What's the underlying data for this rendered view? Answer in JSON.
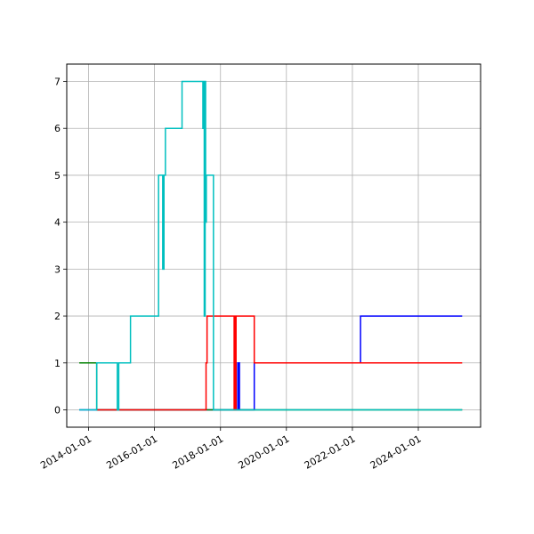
{
  "chart_data": {
    "type": "line",
    "title": "",
    "xlabel": "",
    "ylabel": "",
    "xlim": [
      "2013-05-04",
      "2025-11-21"
    ],
    "ylim": [
      -0.37,
      7.37
    ],
    "grid": true,
    "x_ticks": [
      "2014-01-01",
      "2016-01-01",
      "2018-01-01",
      "2020-01-01",
      "2022-01-01",
      "2024-01-01"
    ],
    "y_ticks": [
      0,
      1,
      2,
      3,
      4,
      5,
      6,
      7
    ],
    "colors": {
      "blue": "#0000ff",
      "green": "#008000",
      "red": "#ff0000",
      "cyan": "#00bfbf",
      "grid": "#b0b0b0"
    },
    "series": [
      {
        "color": "#0000ff",
        "points": [
          [
            "2013-09-20",
            0
          ],
          [
            "2018-06-05",
            0
          ],
          [
            "2018-06-05",
            1
          ],
          [
            "2018-06-12",
            1
          ],
          [
            "2018-06-12",
            0
          ],
          [
            "2018-06-19",
            0
          ],
          [
            "2018-06-19",
            1
          ],
          [
            "2018-06-26",
            1
          ],
          [
            "2018-06-26",
            0
          ],
          [
            "2018-07-15",
            0
          ],
          [
            "2018-07-15",
            1
          ],
          [
            "2018-07-30",
            1
          ],
          [
            "2018-07-30",
            0
          ],
          [
            "2019-01-10",
            0
          ],
          [
            "2019-01-10",
            1
          ],
          [
            "2022-04-01",
            1
          ],
          [
            "2022-04-01",
            2
          ],
          [
            "2025-05-01",
            2
          ]
        ]
      },
      {
        "color": "#008000",
        "points": [
          [
            "2013-09-20",
            1
          ],
          [
            "2014-04-01",
            1
          ],
          [
            "2014-04-01",
            0
          ],
          [
            "2025-05-01",
            0
          ]
        ]
      },
      {
        "color": "#ff0000",
        "points": [
          [
            "2014-04-01",
            0
          ],
          [
            "2017-07-25",
            0
          ],
          [
            "2017-07-25",
            1
          ],
          [
            "2017-08-05",
            1
          ],
          [
            "2017-08-05",
            2
          ],
          [
            "2018-06-01",
            2
          ],
          [
            "2018-06-01",
            0
          ],
          [
            "2018-06-08",
            0
          ],
          [
            "2018-06-08",
            2
          ],
          [
            "2018-06-15",
            2
          ],
          [
            "2018-06-15",
            0
          ],
          [
            "2018-06-22",
            0
          ],
          [
            "2018-06-22",
            2
          ],
          [
            "2019-01-10",
            2
          ],
          [
            "2019-01-10",
            1
          ],
          [
            "2025-05-01",
            1
          ]
        ]
      },
      {
        "color": "#00bfbf",
        "points": [
          [
            "2013-09-20",
            0
          ],
          [
            "2014-04-01",
            0
          ],
          [
            "2014-04-01",
            1
          ],
          [
            "2014-11-15",
            1
          ],
          [
            "2014-11-15",
            0
          ],
          [
            "2014-12-01",
            0
          ],
          [
            "2014-12-01",
            1
          ],
          [
            "2015-04-10",
            1
          ],
          [
            "2015-04-10",
            2
          ],
          [
            "2016-02-15",
            2
          ],
          [
            "2016-02-15",
            5
          ],
          [
            "2016-04-01",
            5
          ],
          [
            "2016-04-01",
            3
          ],
          [
            "2016-04-15",
            3
          ],
          [
            "2016-04-15",
            5
          ],
          [
            "2016-05-01",
            5
          ],
          [
            "2016-05-01",
            6
          ],
          [
            "2016-11-01",
            6
          ],
          [
            "2016-11-01",
            7
          ],
          [
            "2017-06-20",
            7
          ],
          [
            "2017-06-20",
            6
          ],
          [
            "2017-06-28",
            6
          ],
          [
            "2017-06-28",
            7
          ],
          [
            "2017-07-05",
            7
          ],
          [
            "2017-07-05",
            2
          ],
          [
            "2017-07-15",
            2
          ],
          [
            "2017-07-15",
            7
          ],
          [
            "2017-07-20",
            7
          ],
          [
            "2017-07-20",
            4
          ],
          [
            "2017-07-28",
            4
          ],
          [
            "2017-07-28",
            5
          ],
          [
            "2017-10-15",
            5
          ],
          [
            "2017-10-15",
            0
          ],
          [
            "2025-05-01",
            0
          ]
        ]
      }
    ]
  }
}
